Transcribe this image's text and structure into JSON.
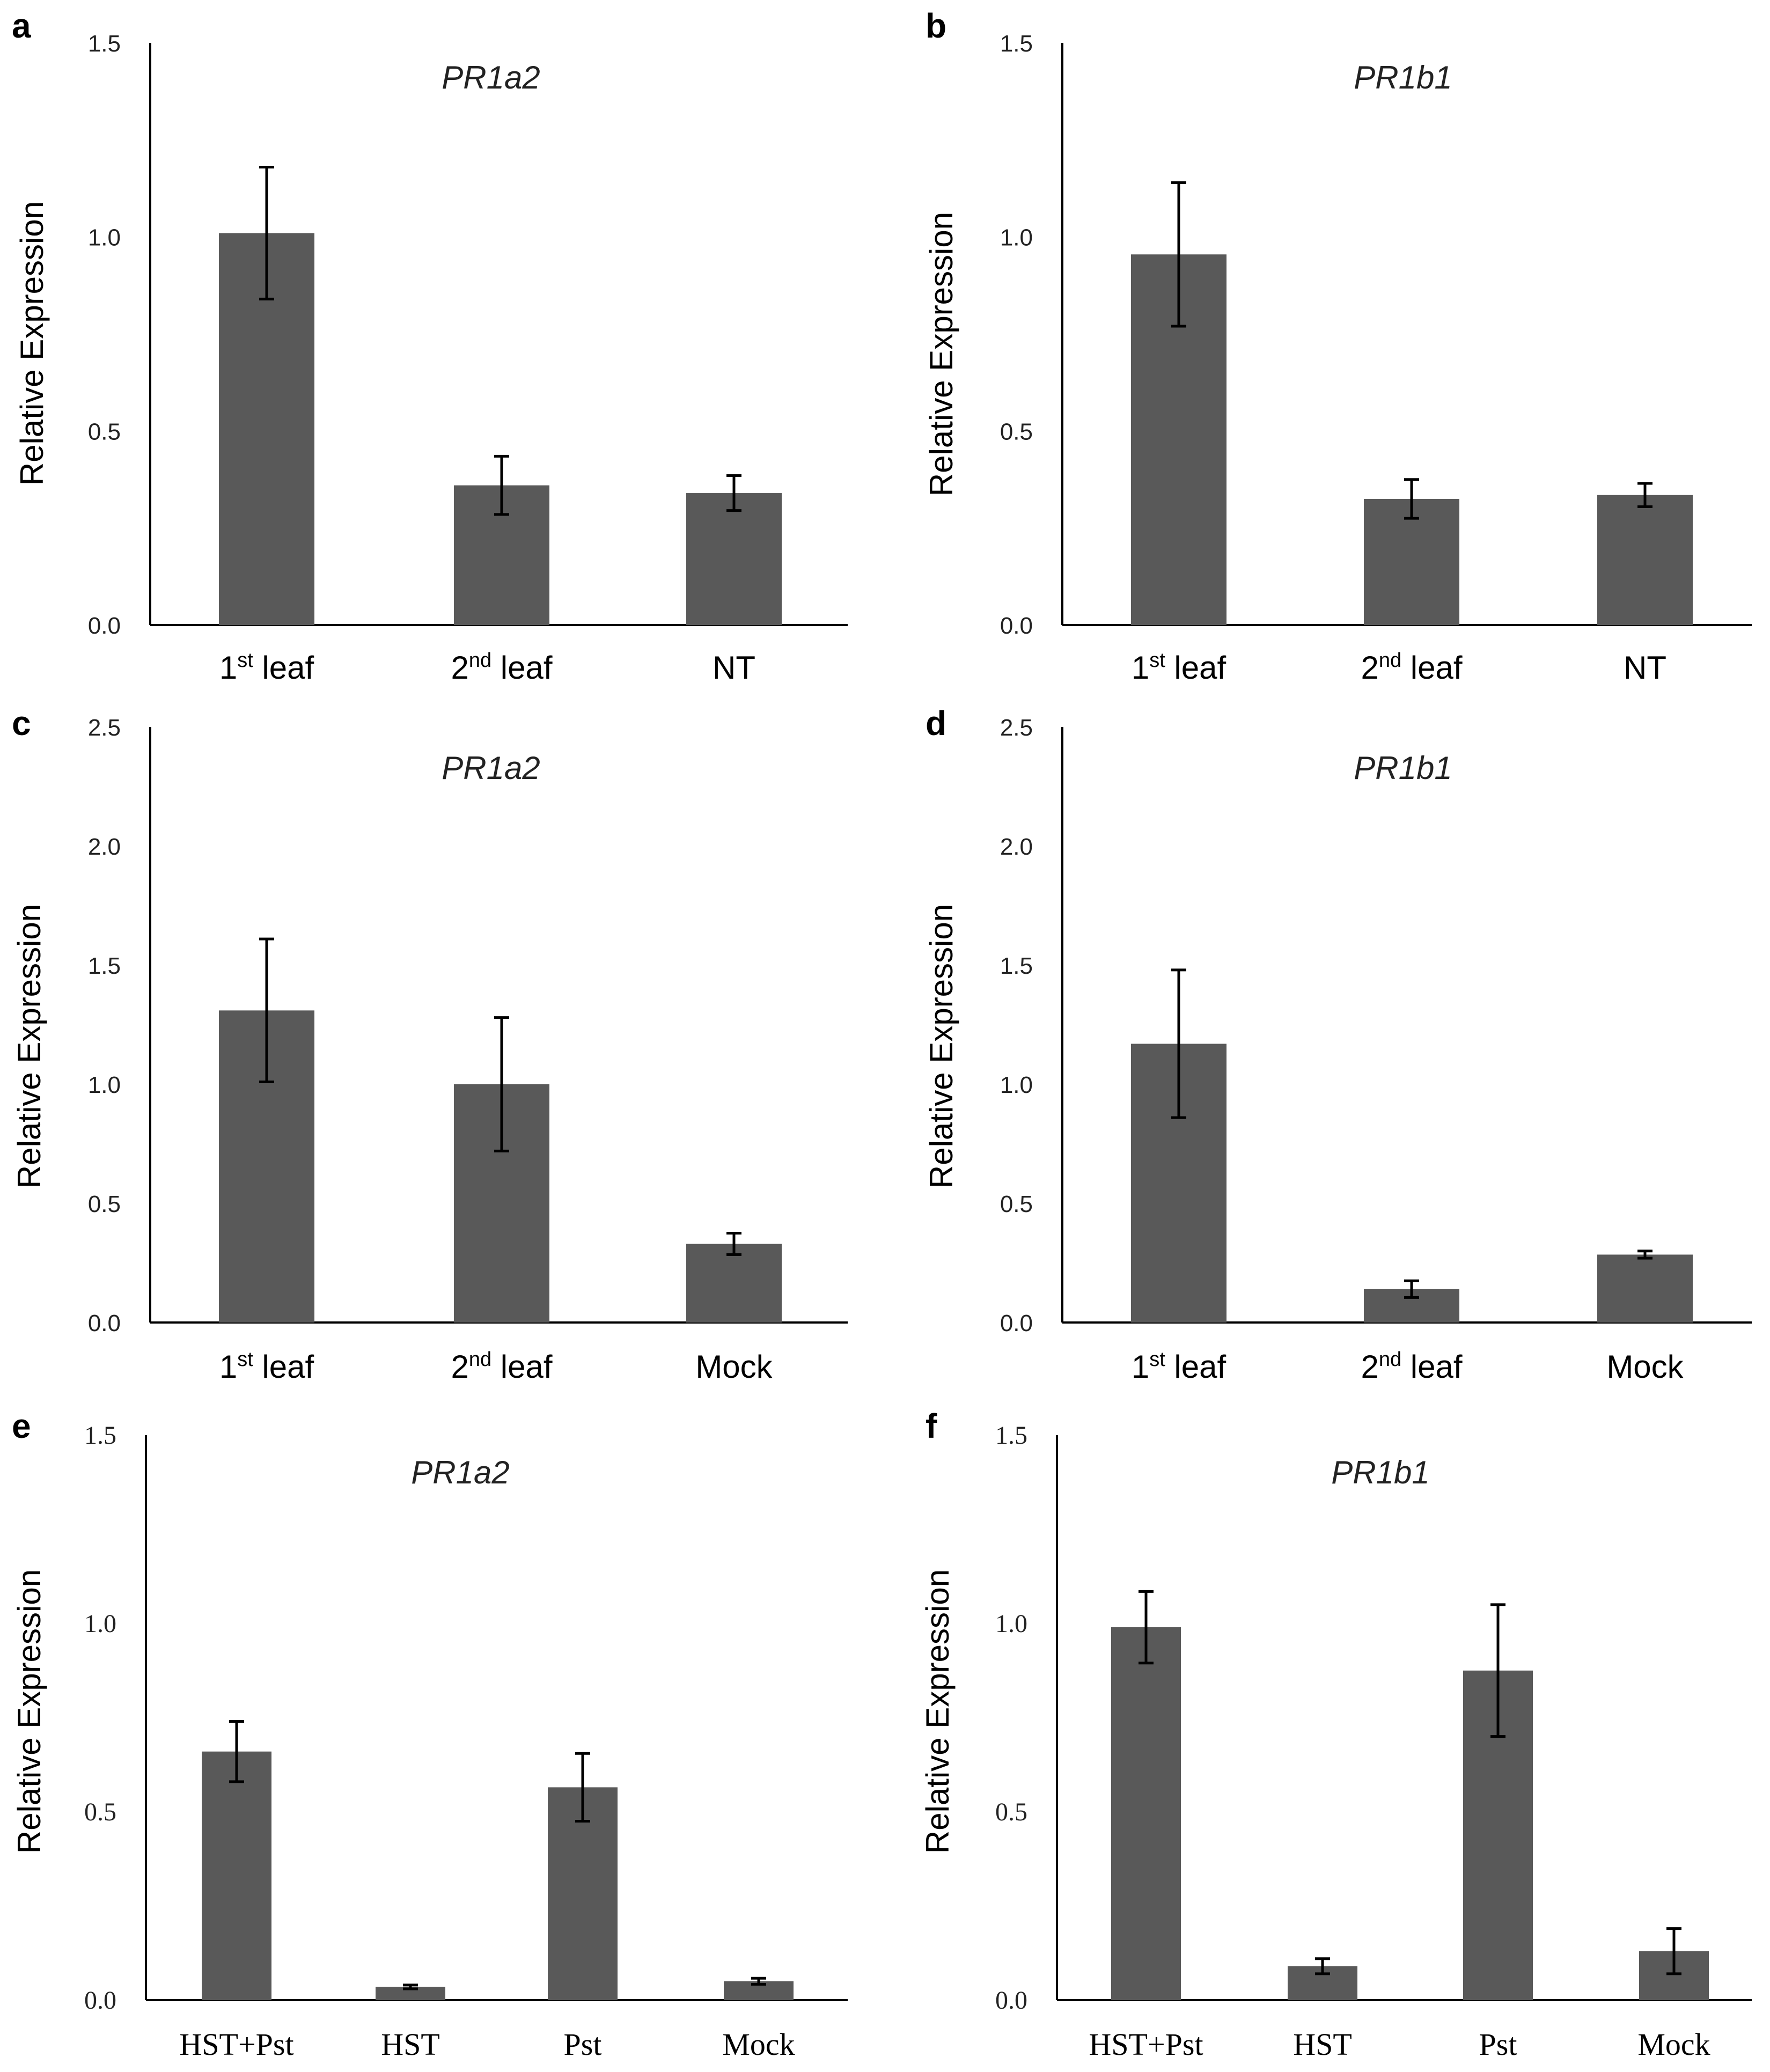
{
  "chart_data": [
    {
      "panel": "a",
      "type": "bar",
      "title": "PR1a2",
      "ylabel": "Relative Expression",
      "ylim": [
        0,
        1.5
      ],
      "yticks": [
        "0.0",
        "0.5",
        "1.0",
        "1.5"
      ],
      "categories": [
        "1st leaf",
        "2nd leaf",
        "NT"
      ],
      "values": [
        1.01,
        0.36,
        0.34
      ],
      "errors": [
        0.17,
        0.075,
        0.045
      ]
    },
    {
      "panel": "b",
      "type": "bar",
      "title": "PR1b1",
      "ylabel": "Relative Expression",
      "ylim": [
        0,
        1.5
      ],
      "yticks": [
        "0.0",
        "0.5",
        "1.0",
        "1.5"
      ],
      "categories": [
        "1st leaf",
        "2nd leaf",
        "NT"
      ],
      "values": [
        0.955,
        0.325,
        0.335
      ],
      "errors": [
        0.185,
        0.05,
        0.03
      ]
    },
    {
      "panel": "c",
      "type": "bar",
      "title": "PR1a2",
      "ylabel": "Relative Expression",
      "ylim": [
        0,
        2.5
      ],
      "yticks": [
        "0.0",
        "0.5",
        "1.0",
        "1.5",
        "2.0",
        "2.5"
      ],
      "categories": [
        "1st leaf",
        "2nd leaf",
        "Mock"
      ],
      "values": [
        1.31,
        1.0,
        0.33
      ],
      "errors": [
        0.3,
        0.28,
        0.045
      ]
    },
    {
      "panel": "d",
      "type": "bar",
      "title": "PR1b1",
      "ylabel": "Relative Expression",
      "ylim": [
        0,
        2.5
      ],
      "yticks": [
        "0.0",
        "0.5",
        "1.0",
        "1.5",
        "2.0",
        "2.5"
      ],
      "categories": [
        "1st leaf",
        "2nd leaf",
        "Mock"
      ],
      "values": [
        1.17,
        0.14,
        0.285
      ],
      "errors": [
        0.31,
        0.035,
        0.015
      ]
    },
    {
      "panel": "e",
      "type": "bar",
      "title": "PR1a2",
      "ylabel": "Relative Expression",
      "ylim": [
        0,
        1.5
      ],
      "yticks": [
        "0.0",
        "0.5",
        "1.0",
        "1.5"
      ],
      "categories": [
        "HST+Pst",
        "HST",
        "Pst",
        "Mock"
      ],
      "values": [
        0.66,
        0.035,
        0.565,
        0.05
      ],
      "errors": [
        0.08,
        0.005,
        0.09,
        0.008
      ]
    },
    {
      "panel": "f",
      "type": "bar",
      "title": "PR1b1",
      "ylabel": "Relative Expression",
      "ylim": [
        0,
        1.5
      ],
      "yticks": [
        "0.0",
        "0.5",
        "1.0",
        "1.5"
      ],
      "categories": [
        "HST+Pst",
        "HST",
        "Pst",
        "Mock"
      ],
      "values": [
        0.99,
        0.09,
        0.875,
        0.13
      ],
      "errors": [
        0.095,
        0.02,
        0.175,
        0.06
      ]
    }
  ]
}
